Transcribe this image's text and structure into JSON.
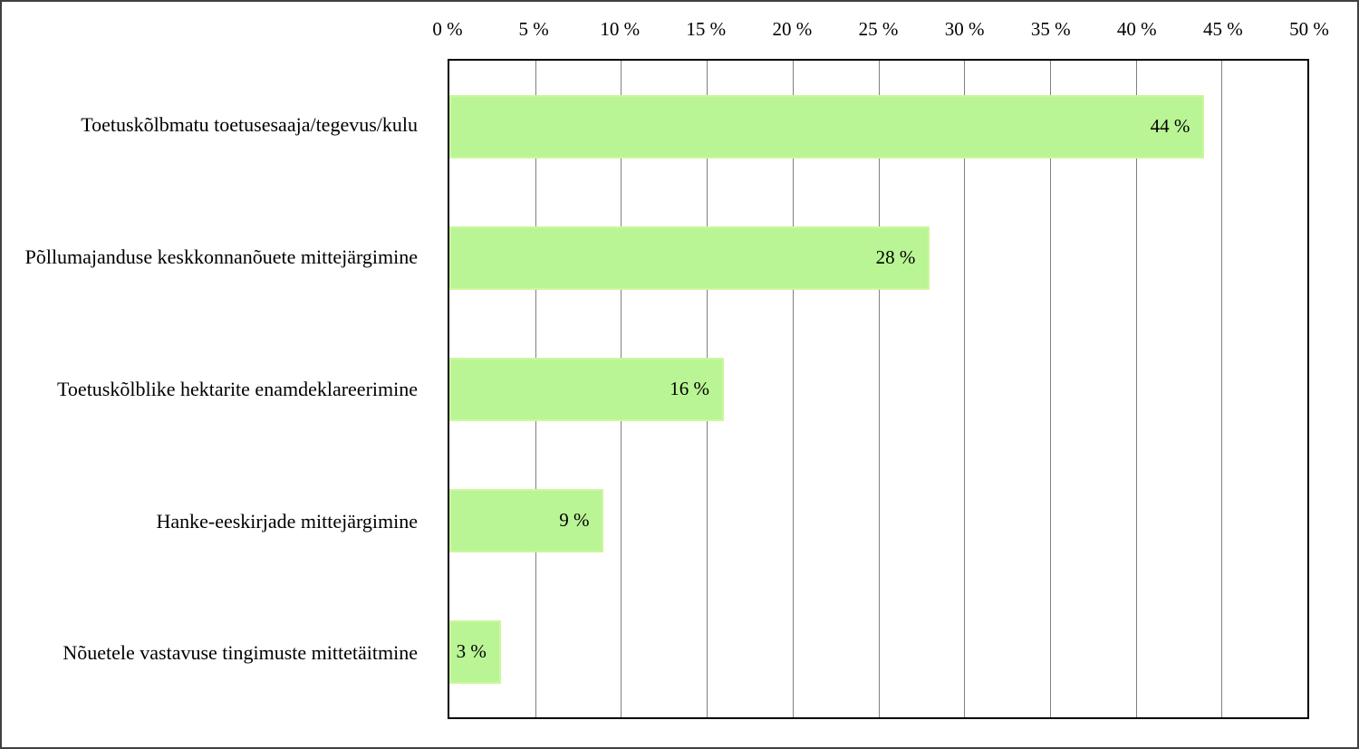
{
  "figure": {
    "background": "#ffffff",
    "border_color": "#404040"
  },
  "chart_data": {
    "type": "bar",
    "orientation": "horizontal",
    "title": "",
    "xlabel": "",
    "ylabel": "",
    "categories": [
      "Toetuskõlbmatu toetusesaaja/tegevus/kulu",
      "Põllumajanduse keskkonnanõuete mittejärgimine",
      "Toetuskõlblike hektarite enamdeklareerimine",
      "Hanke-eeskirjade mittejärgimine",
      "Nõuetele vastavuse tingimuste mittetäitmine"
    ],
    "values": [
      44,
      28,
      16,
      9,
      3
    ],
    "value_labels": [
      "44 %",
      "28 %",
      "16 %",
      "9 %",
      "3 %"
    ],
    "xlim": [
      0,
      50
    ],
    "x_tick_step": 5,
    "tick_labels": [
      "0 %",
      "5 %",
      "10 %",
      "15 %",
      "20 %",
      "25 %",
      "30 %",
      "35 %",
      "40 %",
      "45 %",
      "50 %"
    ],
    "axis_position": "top",
    "grid": "vertical",
    "legend": "none",
    "bar_color": "#b9f595",
    "bar_border_color": "#cdf69d",
    "gridline_color": "#808080",
    "plot_border_color": "#000000",
    "value_label_position": "inside-end"
  }
}
